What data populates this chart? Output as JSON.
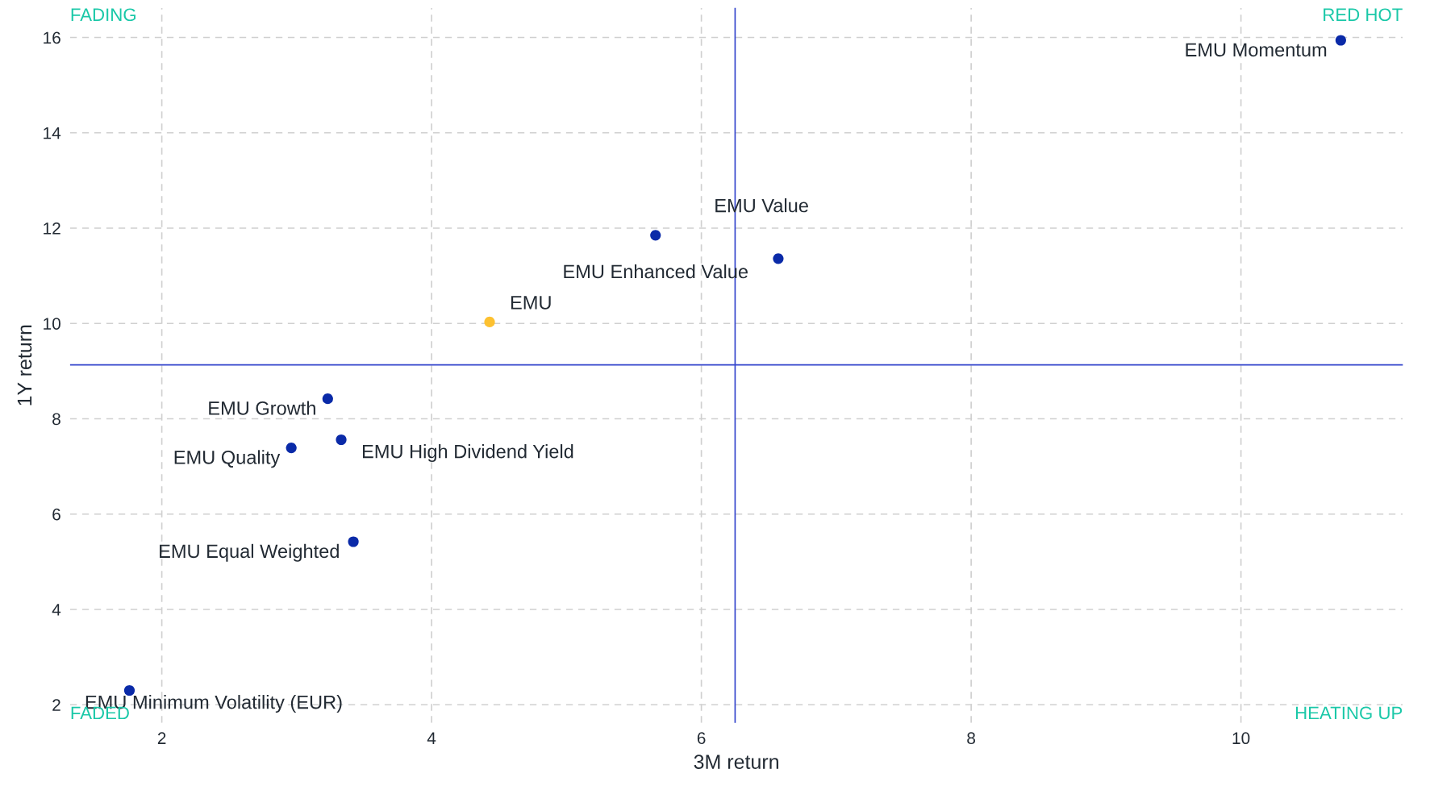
{
  "chart_data": {
    "type": "scatter",
    "xlabel": "3M return",
    "ylabel": "1Y return",
    "xlim": [
      1.32,
      11.2
    ],
    "ylim": [
      1.62,
      16.62
    ],
    "xticks": [
      2,
      4,
      6,
      8,
      10
    ],
    "yticks": [
      2,
      4,
      6,
      8,
      10,
      12,
      14,
      16
    ],
    "grid": true,
    "marker": "circle",
    "series": [
      {
        "x": [
          10.74,
          6.57,
          5.66,
          4.43,
          3.23,
          3.33,
          2.96,
          3.42,
          1.76
        ],
        "values": [
          15.94,
          11.36,
          11.85,
          10.03,
          8.42,
          7.56,
          7.39,
          5.42,
          2.3
        ],
        "colors": [
          "#0a2aa8",
          "#0a2aa8",
          "#0a2aa8",
          "#fdc130",
          "#0a2aa8",
          "#0a2aa8",
          "#0a2aa8",
          "#0a2aa8",
          "#0a2aa8"
        ]
      }
    ],
    "ref_lines": [
      {
        "axis": "x",
        "value": 6.25,
        "color": "#3344cc"
      },
      {
        "axis": "y",
        "value": 9.13,
        "color": "#3344cc"
      }
    ],
    "annotations": [
      {
        "text": "EMU Momentum",
        "x": 10.74,
        "y": 15.94
      },
      {
        "text": "EMU Value",
        "x": 6.57,
        "y": 11.36
      },
      {
        "text": "EMU Enhanced Value",
        "x": 5.66,
        "y": 11.85
      },
      {
        "text": "EMU",
        "x": 4.43,
        "y": 10.03
      },
      {
        "text": "EMU Growth",
        "x": 3.23,
        "y": 8.42
      },
      {
        "text": "EMU High Dividend Yield",
        "x": 3.33,
        "y": 7.56
      },
      {
        "text": "EMU Quality",
        "x": 2.96,
        "y": 7.39
      },
      {
        "text": "EMU Equal Weighted",
        "x": 3.42,
        "y": 5.42
      },
      {
        "text": "EMU Minimum Volatility (EUR)",
        "x": 1.76,
        "y": 2.3
      },
      "FADING",
      "RED HOT",
      "FADED",
      "HEATING UP"
    ]
  }
}
